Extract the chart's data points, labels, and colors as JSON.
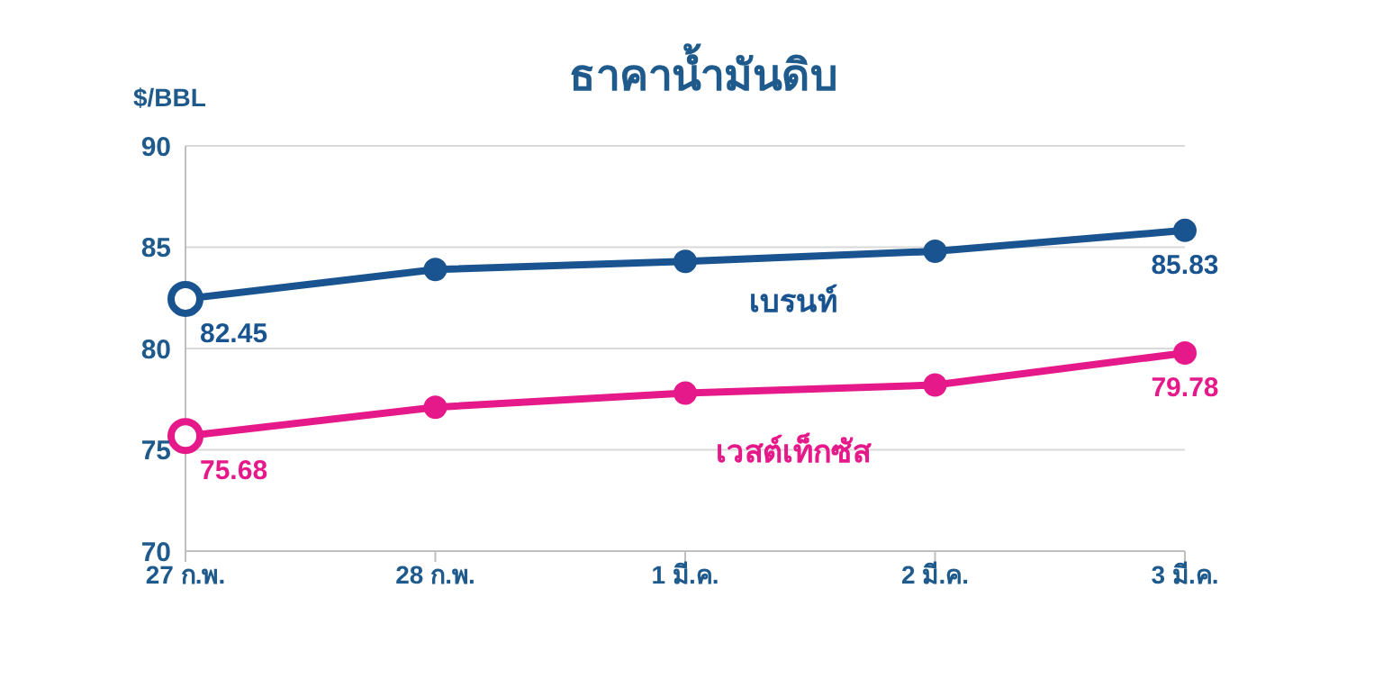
{
  "chart_data": {
    "type": "line",
    "title": "ธาคาน้ำมันดิบ",
    "ylabel": "$/BBL",
    "categories": [
      "27 ก.พ.",
      "28 ก.พ.",
      "1 มี.ค.",
      "2 มี.ค.",
      "3 มี.ค."
    ],
    "series": [
      {
        "name": "เบรนท์",
        "color": "#1a5490",
        "values": [
          82.45,
          83.9,
          84.3,
          84.8,
          85.83
        ],
        "value_labels": [
          "82.45",
          null,
          null,
          null,
          "85.83"
        ]
      },
      {
        "name": "เวสต์เท็กซัส",
        "color": "#e6198a",
        "values": [
          75.68,
          77.1,
          77.8,
          78.2,
          79.78
        ],
        "value_labels": [
          "75.68",
          null,
          null,
          null,
          "79.78"
        ]
      }
    ],
    "ylim": [
      70,
      90
    ],
    "yticks": [
      70,
      75,
      80,
      85,
      90
    ],
    "grid": "y",
    "marker": "circle",
    "line_style": "solid",
    "legend": false
  }
}
